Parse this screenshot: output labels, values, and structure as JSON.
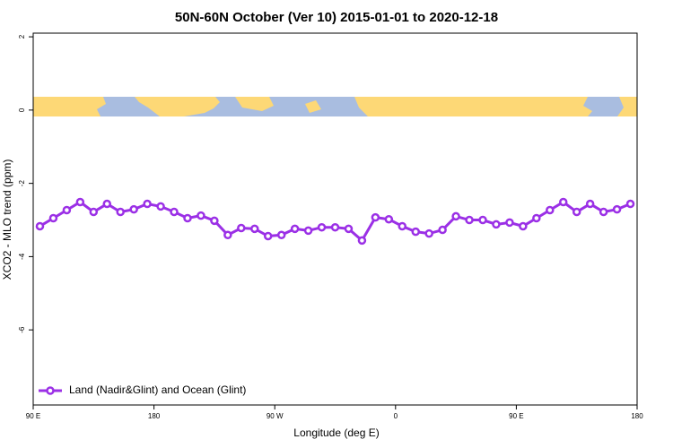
{
  "chart_data": {
    "type": "line",
    "title": "50N-60N October (Ver 10)   2015-01-01 to 2020-12-18",
    "x_label": "Longitude (deg E)",
    "y_label": "XCO2 - MLO trend (ppm)",
    "x": [
      95,
      105,
      115,
      125,
      135,
      145,
      155,
      165,
      175,
      185,
      195,
      205,
      215,
      225,
      235,
      245,
      255,
      265,
      275,
      285,
      295,
      305,
      315,
      325,
      335,
      345,
      355,
      365,
      375,
      385,
      395,
      405,
      415,
      425,
      435,
      445,
      455,
      465,
      475,
      485,
      495,
      505,
      515,
      525,
      535
    ],
    "series": [
      {
        "name": "Land (Nadir&Glint) and Ocean (Glint)",
        "color": "#9b30e6",
        "values": [
          -3.17,
          -2.95,
          -2.73,
          -2.51,
          -2.78,
          -2.56,
          -2.78,
          -2.71,
          -2.56,
          -2.63,
          -2.78,
          -2.95,
          -2.88,
          -3.02,
          -3.41,
          -3.22,
          -3.24,
          -3.44,
          -3.41,
          -3.24,
          -3.29,
          -3.2,
          -3.2,
          -3.24,
          -3.56,
          -2.93,
          -2.98,
          -3.17,
          -3.32,
          -3.37,
          -3.27,
          -2.9,
          -3.0,
          -3.0,
          -3.12,
          -3.07,
          -3.17,
          -2.95,
          -2.73,
          -2.51,
          -2.78,
          -2.56,
          -2.78,
          -2.71,
          -2.56
        ]
      }
    ],
    "xlim": [
      90,
      540
    ],
    "xticks": [
      {
        "value": 90,
        "label": "90 E"
      },
      180,
      {
        "value": 270,
        "label": "90 W"
      },
      {
        "value": 360,
        "label": "0"
      },
      {
        "value": 450,
        "label": "90 E"
      },
      {
        "value": 540,
        "label": "180"
      }
    ],
    "ylim": [
      -8.05,
      2.1
    ],
    "yticks": [
      2,
      0,
      -2,
      -4,
      -6
    ],
    "legend": "bottomleft"
  }
}
